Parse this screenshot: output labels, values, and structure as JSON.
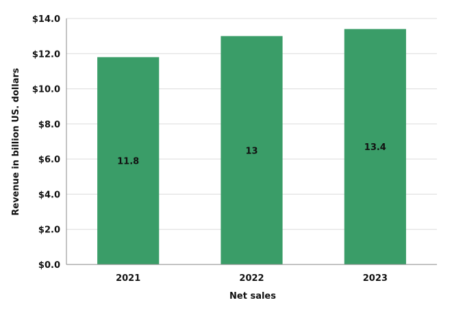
{
  "chart_data": {
    "type": "bar",
    "categories": [
      "2021",
      "2022",
      "2023"
    ],
    "series": [
      {
        "values": [
          11.8,
          13,
          13.4
        ],
        "data_labels": [
          "11.8",
          "13",
          "13.4"
        ],
        "color": "#3a9d68"
      }
    ],
    "xlabel": "Net sales",
    "ylabel": "Revenue in billion US. dollars",
    "ylim": [
      0,
      14
    ],
    "yticks": [
      0,
      2,
      4,
      6,
      8,
      10,
      12,
      14
    ],
    "ytick_labels": [
      "$0.0",
      "$2.0",
      "$4.0",
      "$6.0",
      "$8.0",
      "$10.0",
      "$12.0",
      "$14.0"
    ],
    "grid": true,
    "legend": "none"
  }
}
